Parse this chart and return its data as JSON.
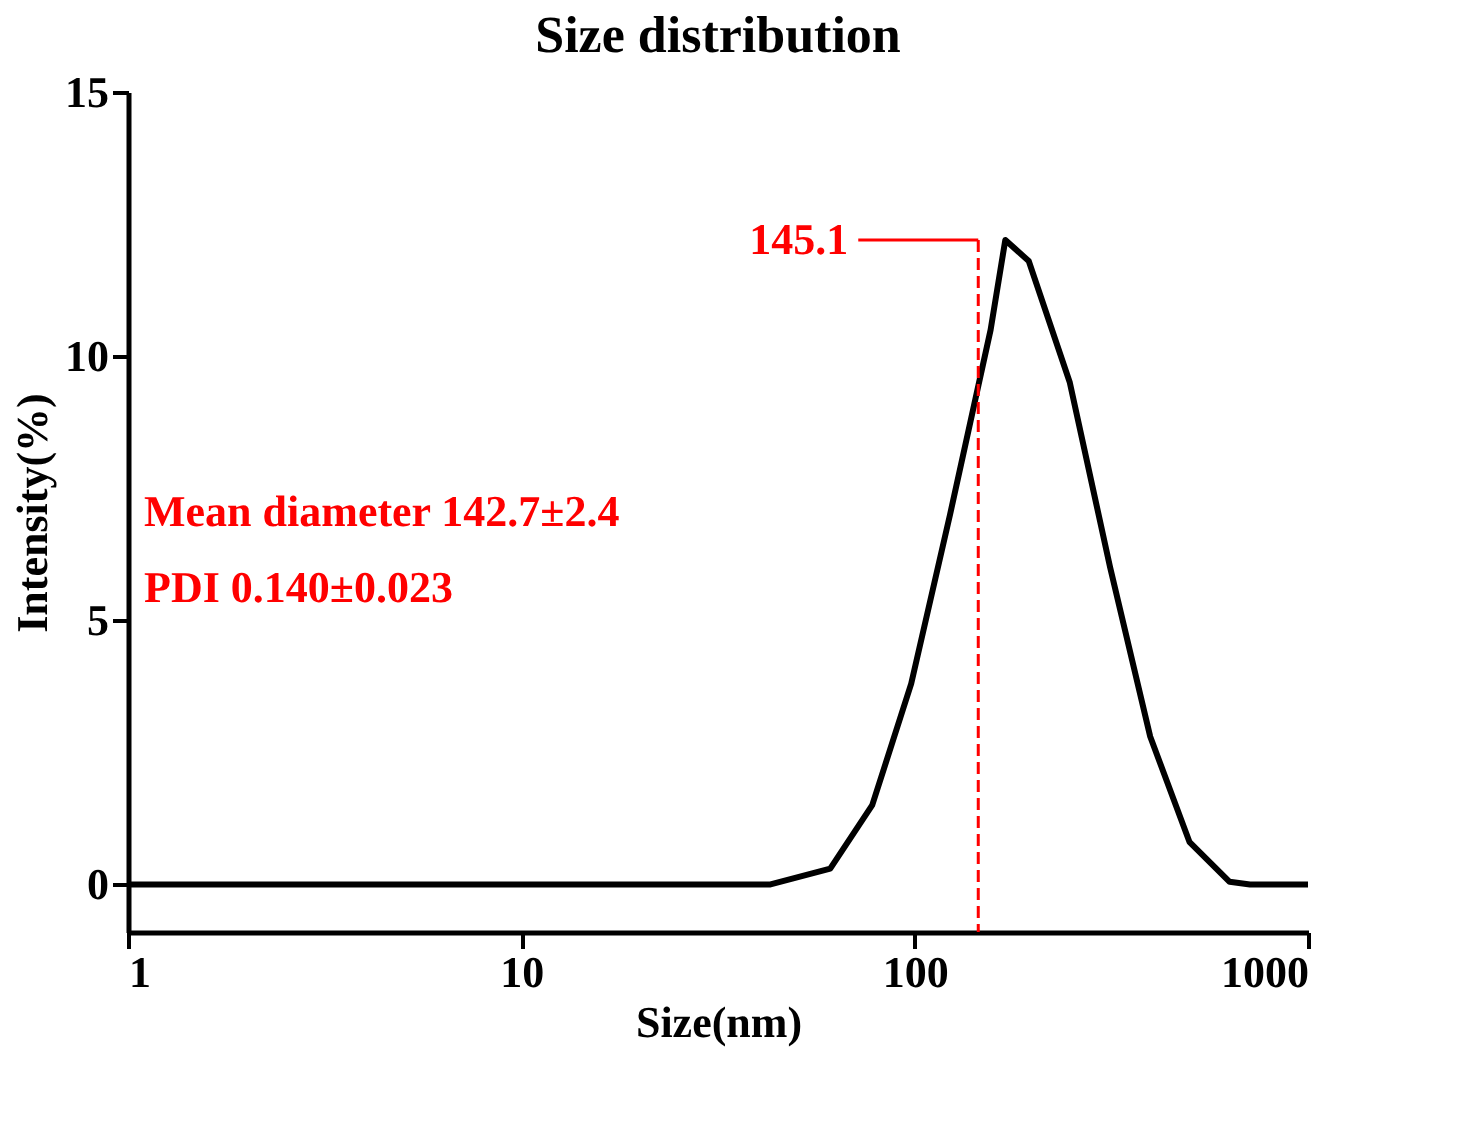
{
  "chart_data": {
    "type": "line",
    "title": "Size distribution",
    "xlabel": "Size(nm)",
    "ylabel": "Intensity(%)",
    "log": "x",
    "xlim": [
      1,
      1000
    ],
    "xticks": [
      1,
      10,
      100,
      1000
    ],
    "ylim": [
      -0.9,
      15
    ],
    "yticks": [
      0,
      5,
      10,
      15
    ],
    "grid": false,
    "marker": "none",
    "line_style": "solid",
    "x": [
      1,
      43,
      61,
      78,
      98,
      123,
      156,
      170,
      195,
      248,
      314,
      397,
      500,
      632,
      712,
      1000
    ],
    "series": [
      {
        "color": "#000000",
        "values": [
          0,
          0,
          0.3,
          1.5,
          3.8,
          7,
          10.5,
          12.2,
          11.8,
          9.5,
          6,
          2.8,
          0.8,
          0.05,
          0,
          0
        ]
      }
    ],
    "ref_lines": [
      {
        "axis": "x",
        "value": 145.1,
        "label": "145.1",
        "color": "#ff0000",
        "line_style": "dashed"
      }
    ],
    "annotations": [
      "Mean diameter 142.7±2.4",
      "PDI 0.140±0.023"
    ]
  }
}
